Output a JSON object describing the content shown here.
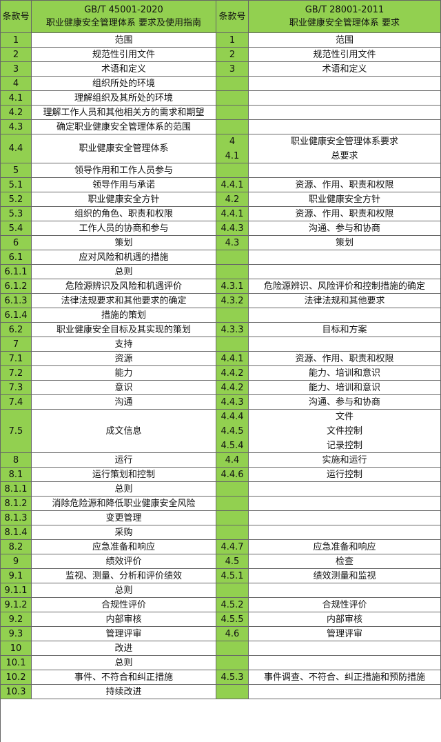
{
  "header": {
    "left_clause": "条款号",
    "left_title": [
      "GB/T 45001-2020",
      "职业健康安全管理体系 要求及使用指南"
    ],
    "right_clause": "条款号",
    "right_title": [
      "GB/T 28001-2011",
      "职业健康安全管理体系 要求"
    ]
  },
  "rows": [
    {
      "clause": "1",
      "title": "范围",
      "ref": {
        "clauses": [
          "1"
        ],
        "titles": [
          "范围"
        ]
      }
    },
    {
      "clause": "2",
      "title": "规范性引用文件",
      "ref": {
        "clauses": [
          "2"
        ],
        "titles": [
          "规范性引用文件"
        ]
      }
    },
    {
      "clause": "3",
      "title": "术语和定义",
      "ref": {
        "clauses": [
          "3"
        ],
        "titles": [
          "术语和定义"
        ]
      }
    },
    {
      "clause": "4",
      "title": "组织所处的环境"
    },
    {
      "clause": "4.1",
      "title": "理解组织及其所处的环境"
    },
    {
      "clause": "4.2",
      "title": "理解工作人员和其他相关方的需求和期望"
    },
    {
      "clause": "4.3",
      "title": "确定职业健康安全管理体系的范围"
    },
    {
      "clause": "4.4",
      "title": "职业健康安全管理体系",
      "ref": {
        "clauses": [
          "4",
          "4.1"
        ],
        "titles": [
          "职业健康安全管理体系要求",
          "总要求"
        ]
      }
    },
    {
      "clause": "5",
      "title": "领导作用和工作人员参与"
    },
    {
      "clause": "5.1",
      "title": "领导作用与承诺",
      "ref": {
        "clauses": [
          "4.4.1"
        ],
        "titles": [
          "资源、作用、职责和权限"
        ]
      }
    },
    {
      "clause": "5.2",
      "title": "职业健康安全方针",
      "ref": {
        "clauses": [
          "4.2"
        ],
        "titles": [
          "职业健康安全方针"
        ]
      }
    },
    {
      "clause": "5.3",
      "title": "组织的角色、职责和权限",
      "ref": {
        "clauses": [
          "4.4.1"
        ],
        "titles": [
          "资源、作用、职责和权限"
        ]
      }
    },
    {
      "clause": "5.4",
      "title": "工作人员的协商和参与",
      "ref": {
        "clauses": [
          "4.4.3"
        ],
        "titles": [
          "沟通、参与和协商"
        ]
      }
    },
    {
      "clause": "6",
      "title": "策划",
      "ref": {
        "clauses": [
          "4.3"
        ],
        "titles": [
          "策划"
        ]
      }
    },
    {
      "clause": "6.1",
      "title": "应对风险和机遇的措施"
    },
    {
      "clause": "6.1.1",
      "title": "总则"
    },
    {
      "clause": "6.1.2",
      "title": "危险源辨识及风险和机遇评价",
      "ref": {
        "clauses": [
          "4.3.1"
        ],
        "titles": [
          "危险源辨识、风险评价和控制措施的确定"
        ]
      }
    },
    {
      "clause": "6.1.3",
      "title": "法律法规要求和其他要求的确定",
      "ref": {
        "clauses": [
          "4.3.2"
        ],
        "titles": [
          "法律法规和其他要求"
        ]
      }
    },
    {
      "clause": "6.1.4",
      "title": "措施的策划"
    },
    {
      "clause": "6.2",
      "title": "职业健康安全目标及其实现的策划",
      "ref": {
        "clauses": [
          "4.3.3"
        ],
        "titles": [
          "目标和方案"
        ]
      }
    },
    {
      "clause": "7",
      "title": "支持"
    },
    {
      "clause": "7.1",
      "title": "资源",
      "ref": {
        "clauses": [
          "4.4.1"
        ],
        "titles": [
          "资源、作用、职责和权限"
        ]
      }
    },
    {
      "clause": "7.2",
      "title": "能力",
      "ref": {
        "clauses": [
          "4.4.2"
        ],
        "titles": [
          "能力、培训和意识"
        ]
      }
    },
    {
      "clause": "7.3",
      "title": "意识",
      "ref": {
        "clauses": [
          "4.4.2"
        ],
        "titles": [
          "能力、培训和意识"
        ]
      }
    },
    {
      "clause": "7.4",
      "title": "沟通",
      "ref": {
        "clauses": [
          "4.4.3"
        ],
        "titles": [
          "沟通、参与和协商"
        ]
      }
    },
    {
      "clause": "7.5",
      "title": "成文信息",
      "ref": {
        "clauses": [
          "4.4.4",
          "4.4.5",
          "4.5.4"
        ],
        "titles": [
          "文件",
          "文件控制",
          "记录控制"
        ]
      }
    },
    {
      "clause": "8",
      "title": "运行",
      "ref": {
        "clauses": [
          "4.4"
        ],
        "titles": [
          "实施和运行"
        ]
      }
    },
    {
      "clause": "8.1",
      "title": "运行策划和控制",
      "ref": {
        "clauses": [
          "4.4.6"
        ],
        "titles": [
          "运行控制"
        ]
      }
    },
    {
      "clause": "8.1.1",
      "title": "总则"
    },
    {
      "clause": "8.1.2",
      "title": "消除危险源和降低职业健康安全风险"
    },
    {
      "clause": "8.1.3",
      "title": "变更管理"
    },
    {
      "clause": "8.1.4",
      "title": "采购"
    },
    {
      "clause": "8.2",
      "title": "应急准备和响应",
      "ref": {
        "clauses": [
          "4.4.7"
        ],
        "titles": [
          "应急准备和响应"
        ]
      }
    },
    {
      "clause": "9",
      "title": "绩效评价",
      "ref": {
        "clauses": [
          "4.5"
        ],
        "titles": [
          "检查"
        ]
      }
    },
    {
      "clause": "9.1",
      "title": "监视、测量、分析和评价绩效",
      "ref": {
        "clauses": [
          "4.5.1"
        ],
        "titles": [
          "绩效测量和监视"
        ]
      }
    },
    {
      "clause": "9.1.1",
      "title": "总则"
    },
    {
      "clause": "9.1.2",
      "title": "合规性评价",
      "ref": {
        "clauses": [
          "4.5.2"
        ],
        "titles": [
          "合规性评价"
        ]
      }
    },
    {
      "clause": "9.2",
      "title": "内部审核",
      "ref": {
        "clauses": [
          "4.5.5"
        ],
        "titles": [
          "内部审核"
        ]
      }
    },
    {
      "clause": "9.3",
      "title": "管理评审",
      "ref": {
        "clauses": [
          "4.6"
        ],
        "titles": [
          "管理评审"
        ]
      }
    },
    {
      "clause": "10",
      "title": "改进"
    },
    {
      "clause": "10.1",
      "title": "总则"
    },
    {
      "clause": "10.2",
      "title": "事件、不符合和纠正措施",
      "ref": {
        "clauses": [
          "4.5.3"
        ],
        "titles": [
          "事件调查、不符合、纠正措施和预防措施"
        ]
      }
    },
    {
      "clause": "10.3",
      "title": "持续改进"
    }
  ]
}
